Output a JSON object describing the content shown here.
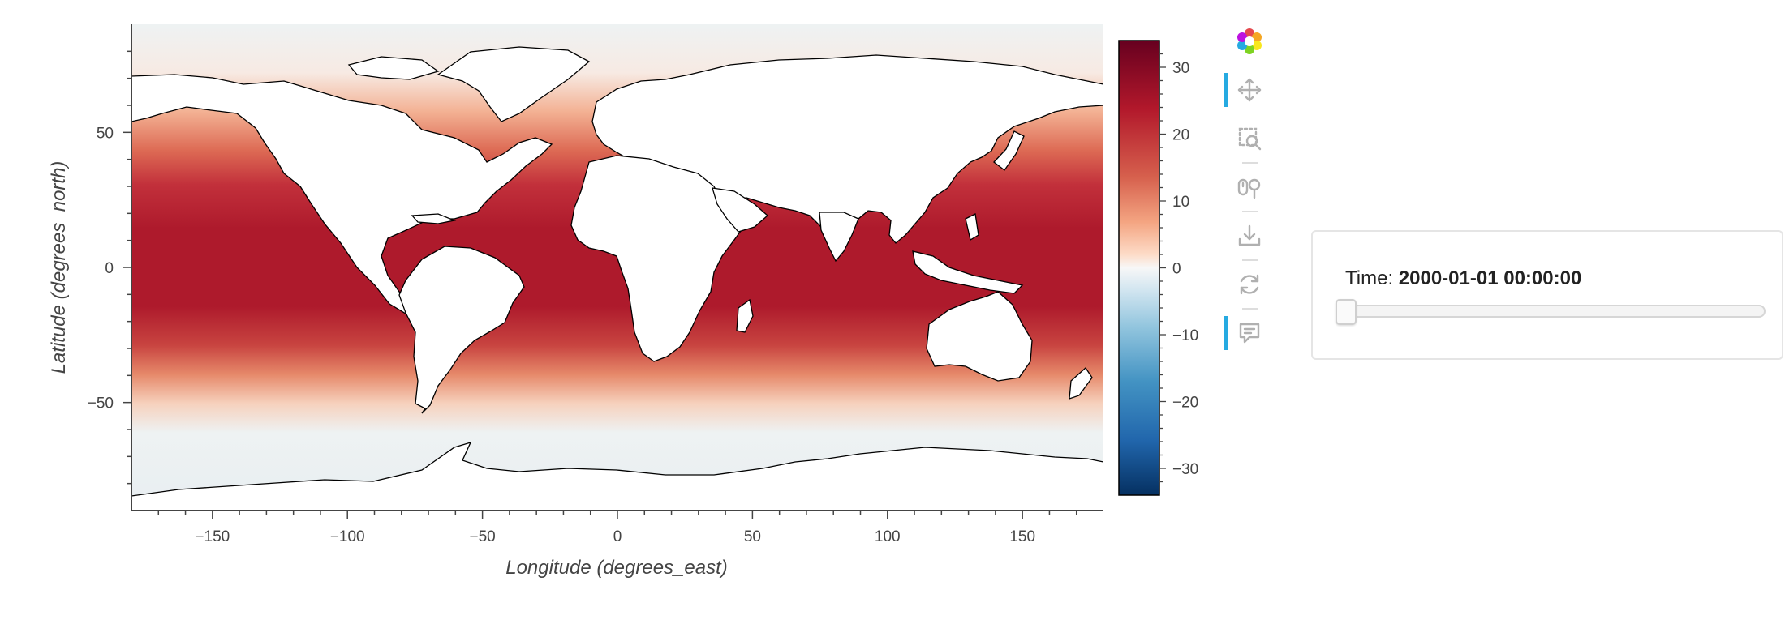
{
  "plot": {
    "xlabel": "Longitude (degrees_east)",
    "ylabel": "Latitude (degrees_north)",
    "x_ticks": [
      -150,
      -100,
      -50,
      0,
      50,
      100,
      150
    ],
    "x_tick_labels": [
      "−150",
      "−100",
      "−50",
      "0",
      "50",
      "100",
      "150"
    ],
    "y_ticks": [
      50,
      0,
      -50
    ],
    "y_tick_labels": [
      "50",
      "0",
      "−50"
    ],
    "xlim": [
      -180,
      180
    ],
    "ylim": [
      -90,
      90
    ],
    "colorbar": {
      "colormap": "RdBu_r",
      "range": [
        -34,
        34
      ],
      "ticks": [
        30,
        20,
        10,
        0,
        -10,
        -20,
        -30
      ],
      "tick_labels": [
        "30",
        "20",
        "10",
        "0",
        "−10",
        "−20",
        "−30"
      ]
    },
    "field": "sea surface temperature-like field, warmest (~30) in tropics, near 0 at poles",
    "colors": {
      "warm": "#a50f26",
      "cool": "#053061",
      "land": "#ffffff",
      "coast": "#000000"
    }
  },
  "toolbar": {
    "items": [
      {
        "name": "bokeh-logo-icon",
        "active": false
      },
      {
        "name": "pan-icon",
        "active": true
      },
      {
        "name": "box-zoom-icon",
        "active": false
      },
      {
        "name": "wheel-zoom-icon",
        "active": false
      },
      {
        "name": "save-icon",
        "active": false
      },
      {
        "name": "reset-icon",
        "active": false
      },
      {
        "name": "hover-icon",
        "active": true
      }
    ]
  },
  "widget": {
    "label": "Time:",
    "value": "2000-01-01 00:00:00",
    "slider_fraction": 0.0
  }
}
